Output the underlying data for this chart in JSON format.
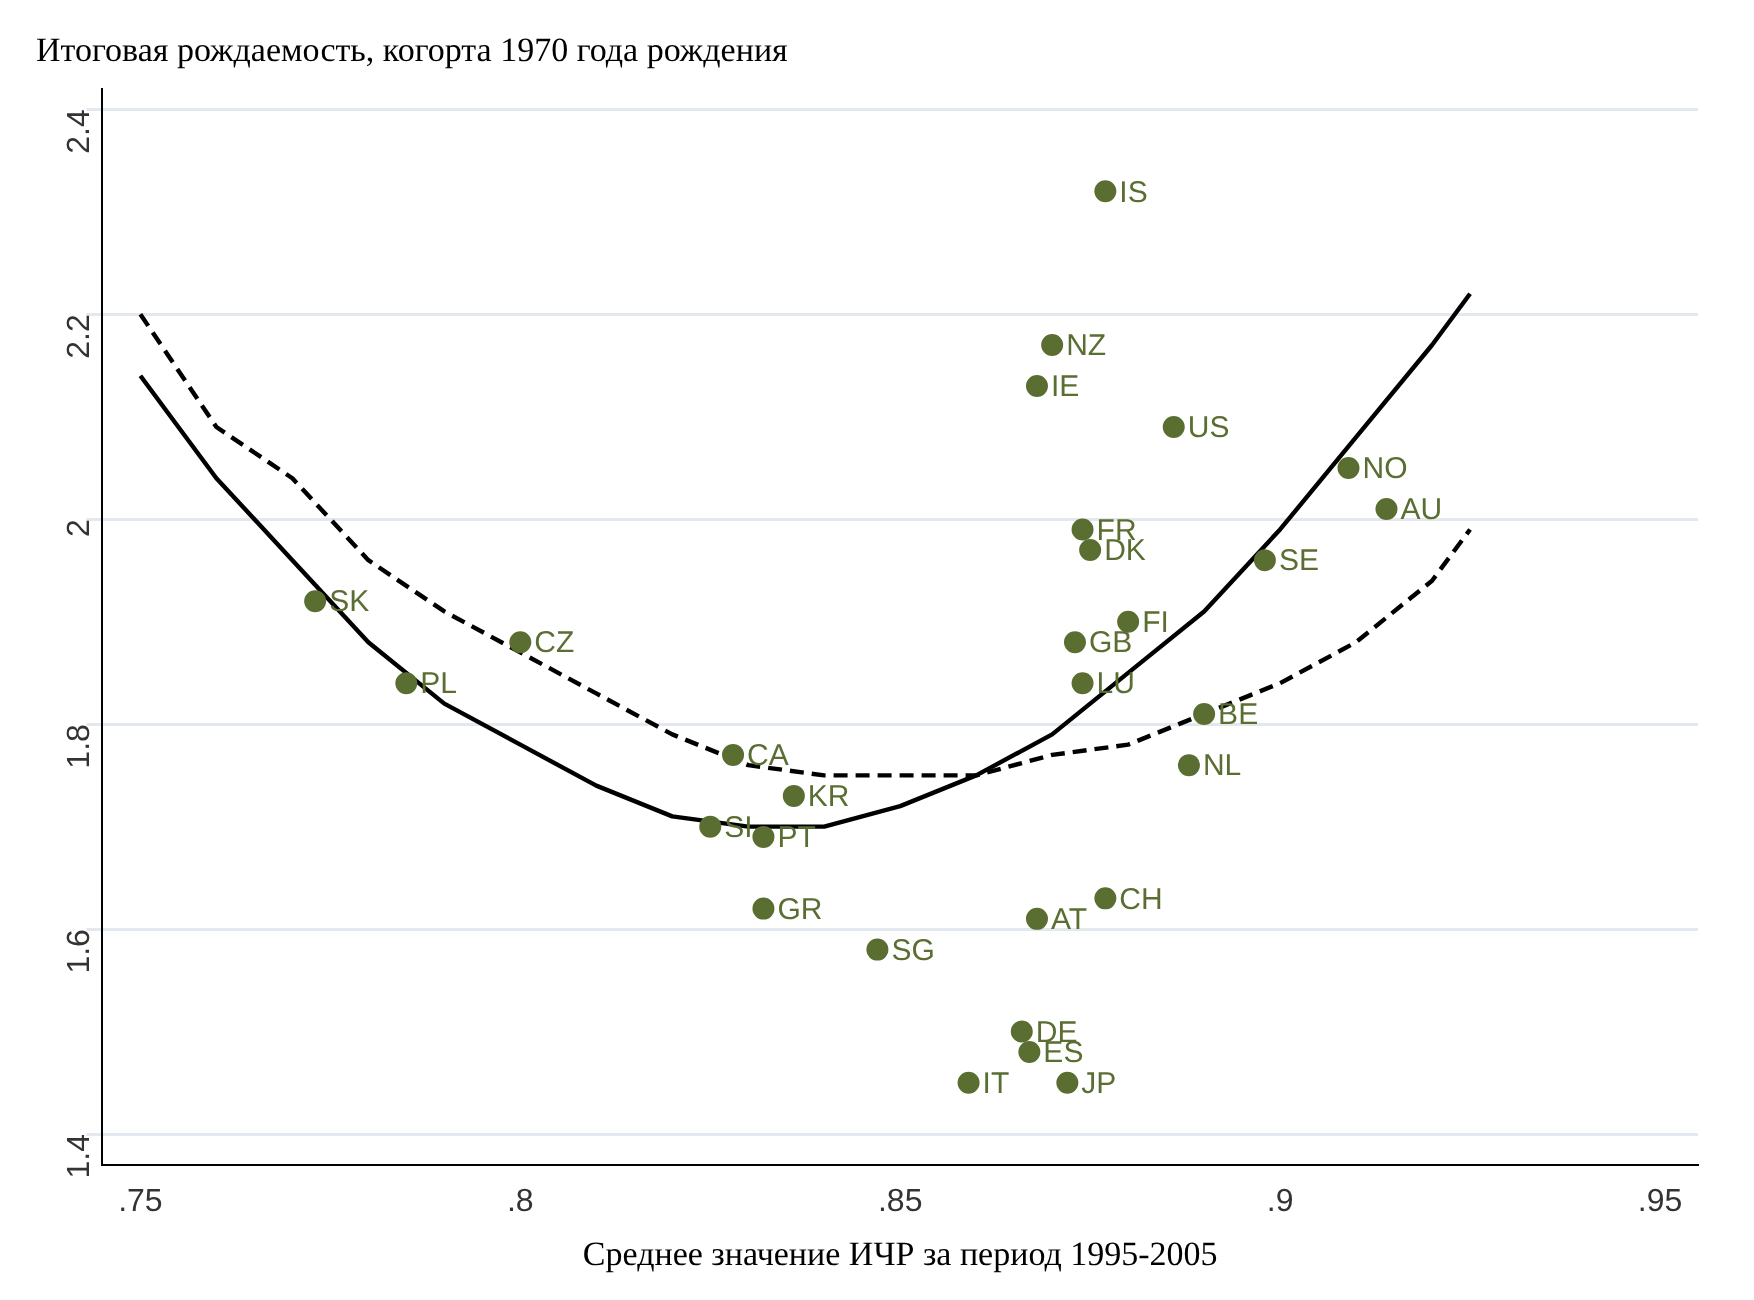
{
  "chart_data": {
    "type": "scatter",
    "title": "Итоговая рождаемость, когорта 1970 года рождения",
    "xlabel": "Среднее значение ИЧР за период 1995-2005",
    "xlim": [
      0.745,
      0.955
    ],
    "ylim": [
      1.37,
      2.42
    ],
    "xticks": [
      {
        "value": 0.75,
        "label": ".75"
      },
      {
        "value": 0.8,
        "label": ".8"
      },
      {
        "value": 0.85,
        "label": ".85"
      },
      {
        "value": 0.9,
        "label": ".9"
      },
      {
        "value": 0.95,
        "label": ".95"
      }
    ],
    "yticks": [
      1.4,
      1.6,
      1.8,
      2,
      2.2,
      2.4
    ],
    "grid": "y",
    "legend": false,
    "series": [
      {
        "color": "#5a6e32",
        "marker": "circle",
        "x": [
          0.877,
          0.87,
          0.868,
          0.886,
          0.909,
          0.914,
          0.874,
          0.875,
          0.898,
          0.88,
          0.873,
          0.874,
          0.89,
          0.888,
          0.877,
          0.868,
          0.847,
          0.866,
          0.867,
          0.859,
          0.872,
          0.832,
          0.832,
          0.825,
          0.836,
          0.828,
          0.8,
          0.785,
          0.773
        ],
        "values": [
          2.32,
          2.17,
          2.13,
          2.09,
          2.05,
          2.01,
          1.99,
          1.97,
          1.96,
          1.9,
          1.88,
          1.84,
          1.81,
          1.76,
          1.63,
          1.61,
          1.58,
          1.5,
          1.48,
          1.45,
          1.45,
          1.62,
          1.69,
          1.7,
          1.73,
          1.77,
          1.88,
          1.84,
          1.92
        ],
        "value_labels": [
          "IS",
          "NZ",
          "IE",
          "US",
          "NO",
          "AU",
          "FR",
          "DK",
          "SE",
          "FI",
          "GB",
          "LU",
          "BE",
          "NL",
          "CH",
          "AT",
          "SG",
          "DE",
          "ES",
          "IT",
          "JP",
          "GR",
          "PT",
          "SI",
          "KR",
          "CA",
          "CZ",
          "PL",
          "SK"
        ]
      },
      {
        "type": "line",
        "color": "#000000",
        "marker": "none",
        "line_style": "solid",
        "x": [
          0.75,
          0.76,
          0.77,
          0.78,
          0.79,
          0.8,
          0.81,
          0.82,
          0.83,
          0.84,
          0.85,
          0.86,
          0.87,
          0.88,
          0.89,
          0.9,
          0.91,
          0.92,
          0.925
        ],
        "values": [
          2.14,
          2.04,
          1.96,
          1.88,
          1.82,
          1.78,
          1.74,
          1.71,
          1.7,
          1.7,
          1.72,
          1.75,
          1.79,
          1.85,
          1.91,
          1.99,
          2.08,
          2.17,
          2.22
        ]
      },
      {
        "type": "line",
        "color": "#000000",
        "marker": "none",
        "line_style": "dashed",
        "x": [
          0.75,
          0.76,
          0.77,
          0.78,
          0.79,
          0.8,
          0.81,
          0.82,
          0.83,
          0.84,
          0.85,
          0.86,
          0.87,
          0.88,
          0.89,
          0.9,
          0.91,
          0.92,
          0.925
        ],
        "values": [
          2.2,
          2.09,
          2.04,
          1.96,
          1.91,
          1.87,
          1.83,
          1.79,
          1.76,
          1.75,
          1.75,
          1.75,
          1.77,
          1.78,
          1.81,
          1.84,
          1.88,
          1.94,
          1.99
        ]
      }
    ]
  }
}
